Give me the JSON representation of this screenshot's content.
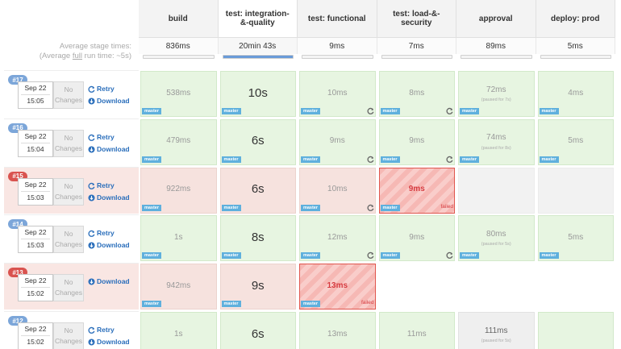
{
  "header": {
    "stages": [
      "build",
      "test: integration-&-quality",
      "test: functional",
      "test: load-&-security",
      "approval",
      "deploy: prod"
    ],
    "avg_label": "Average stage times:",
    "avg_run_parts": [
      "(Average ",
      "full",
      " run time: ~5s)"
    ],
    "averages": [
      "836ms",
      "20min 43s",
      "9ms",
      "7ms",
      "89ms",
      "5ms"
    ]
  },
  "runs": [
    {
      "id": "#17",
      "date": "Sep 22",
      "time": "15:05",
      "changes": "No Changes",
      "actions": [
        "Retry",
        "Download"
      ],
      "status": "success",
      "cells": [
        {
          "time": "538ms",
          "branch": "master",
          "status": "success"
        },
        {
          "time": "10s",
          "branch": "master",
          "status": "success"
        },
        {
          "time": "10ms",
          "branch": "master",
          "status": "success",
          "retry_icon": true
        },
        {
          "time": "8ms",
          "branch": "master",
          "status": "success",
          "retry_icon": true
        },
        {
          "time": "72ms",
          "note": "(paused for 7s)",
          "branch": "master",
          "status": "success"
        },
        {
          "time": "4ms",
          "branch": "master",
          "status": "success"
        }
      ]
    },
    {
      "id": "#16",
      "date": "Sep 22",
      "time": "15:04",
      "changes": "No Changes",
      "actions": [
        "Retry",
        "Download"
      ],
      "status": "success",
      "cells": [
        {
          "time": "479ms",
          "branch": "master",
          "status": "success"
        },
        {
          "time": "6s",
          "branch": "master",
          "status": "success"
        },
        {
          "time": "9ms",
          "branch": "master",
          "status": "success",
          "retry_icon": true
        },
        {
          "time": "9ms",
          "branch": "master",
          "status": "success",
          "retry_icon": true
        },
        {
          "time": "74ms",
          "note": "(paused for 8s)",
          "branch": "master",
          "status": "success"
        },
        {
          "time": "5ms",
          "branch": "master",
          "status": "success"
        }
      ]
    },
    {
      "id": "#15",
      "date": "Sep 22",
      "time": "15:03",
      "changes": "No Changes",
      "actions": [
        "Retry",
        "Download"
      ],
      "status": "failed",
      "cells": [
        {
          "time": "922ms",
          "branch": "master",
          "status": "before-fail"
        },
        {
          "time": "6s",
          "branch": "master",
          "status": "before-fail"
        },
        {
          "time": "10ms",
          "branch": "master",
          "status": "before-fail",
          "retry_icon": true
        },
        {
          "time": "9ms",
          "branch": "master",
          "status": "failed",
          "failed_label": "failed"
        },
        {
          "status": "empty"
        },
        {
          "status": "empty"
        }
      ]
    },
    {
      "id": "#14",
      "date": "Sep 22",
      "time": "15:03",
      "changes": "No Changes",
      "actions": [
        "Retry",
        "Download"
      ],
      "status": "success",
      "cells": [
        {
          "time": "1s",
          "branch": "master",
          "status": "success"
        },
        {
          "time": "8s",
          "branch": "master",
          "status": "success"
        },
        {
          "time": "12ms",
          "branch": "master",
          "status": "success",
          "retry_icon": true
        },
        {
          "time": "9ms",
          "branch": "master",
          "status": "success",
          "retry_icon": true
        },
        {
          "time": "80ms",
          "note": "(paused for 5s)",
          "branch": "master",
          "status": "success"
        },
        {
          "time": "5ms",
          "branch": "master",
          "status": "success"
        }
      ]
    },
    {
      "id": "#13",
      "date": "Sep 22",
      "time": "15:02",
      "changes": "No Changes",
      "actions": [
        "Download"
      ],
      "status": "failed",
      "cells": [
        {
          "time": "942ms",
          "branch": "master",
          "status": "before-fail"
        },
        {
          "time": "9s",
          "branch": "master",
          "status": "before-fail"
        },
        {
          "time": "13ms",
          "branch": "master",
          "status": "failed",
          "failed_label": "failed"
        },
        {
          "status": "blank"
        },
        {
          "status": "blank"
        },
        {
          "status": "blank"
        }
      ]
    },
    {
      "id": "#12",
      "date": "Sep 22",
      "time": "15:02",
      "changes": "No Changes",
      "actions": [
        "Retry",
        "Download"
      ],
      "status": "success",
      "cells": [
        {
          "time": "1s",
          "status": "success"
        },
        {
          "time": "6s",
          "status": "success"
        },
        {
          "time": "13ms",
          "status": "success"
        },
        {
          "time": "11ms",
          "status": "success"
        },
        {
          "time": "111ms",
          "note": "(paused for 5s)",
          "status": "neutral"
        },
        {
          "status": "success"
        }
      ]
    }
  ]
}
